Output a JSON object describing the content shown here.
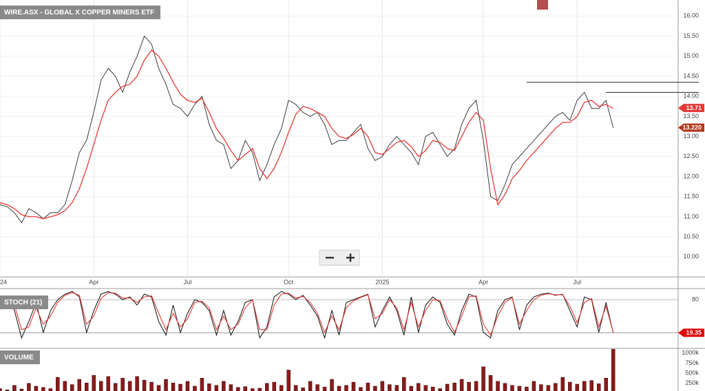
{
  "chart_data": [
    {
      "type": "price",
      "title": "WIRE.ASX - GLOBAL X COPPER MINERS ETF",
      "x": [
        0,
        1,
        2,
        3,
        4,
        5,
        6,
        7,
        8,
        9,
        10,
        11,
        12,
        13,
        14,
        15,
        16,
        17,
        18,
        19,
        20,
        21,
        22,
        23,
        24,
        25,
        26,
        27,
        28,
        29,
        30,
        31,
        32,
        33,
        34,
        35,
        36,
        37,
        38,
        39,
        40,
        41,
        42,
        43,
        44,
        45,
        46,
        47,
        48,
        49,
        50,
        51,
        52,
        53,
        54,
        55,
        56,
        57,
        58,
        59,
        60,
        61,
        62,
        63,
        64,
        65,
        66,
        67,
        68,
        69,
        70,
        71,
        72,
        73,
        74,
        75,
        76,
        77,
        78,
        79,
        80,
        81,
        82,
        83,
        84,
        85
      ],
      "xlim": [
        0,
        94
      ],
      "xticks": [
        {
          "value": 0,
          "label": "24"
        },
        {
          "value": 13,
          "label": "Apr"
        },
        {
          "value": 26,
          "label": "Jul"
        },
        {
          "value": 40,
          "label": "Oct"
        },
        {
          "value": 53,
          "label": "2025"
        },
        {
          "value": 67,
          "label": "Apr"
        },
        {
          "value": 80,
          "label": "Jul"
        }
      ],
      "ylim": [
        9.5,
        16.4
      ],
      "yticks": [
        {
          "value": 10,
          "label": "10.00"
        },
        {
          "value": 10.5,
          "label": "10.50"
        },
        {
          "value": 11,
          "label": "11.00"
        },
        {
          "value": 11.5,
          "label": "11.50"
        },
        {
          "value": 12,
          "label": "12.00"
        },
        {
          "value": 12.5,
          "label": "12.50"
        },
        {
          "value": 13,
          "label": "13.00"
        },
        {
          "value": 13.5,
          "label": "13.50"
        },
        {
          "value": 14,
          "label": "14.00"
        },
        {
          "value": 14.5,
          "label": "14.50"
        },
        {
          "value": 15,
          "label": "15.00"
        },
        {
          "value": 15.5,
          "label": "15.50"
        },
        {
          "value": 16,
          "label": "16.00"
        }
      ],
      "grid": true,
      "series": [
        {
          "color": "#3a3a3a",
          "values": [
            11.3,
            11.25,
            11.1,
            10.85,
            11.2,
            11.1,
            10.95,
            11.1,
            11.1,
            11.3,
            11.9,
            12.6,
            12.9,
            13.6,
            14.4,
            14.7,
            14.5,
            14.1,
            14.6,
            15.0,
            15.5,
            15.3,
            14.7,
            14.3,
            13.8,
            13.7,
            13.5,
            13.8,
            14.0,
            13.3,
            12.9,
            12.8,
            12.2,
            12.4,
            12.9,
            12.6,
            11.9,
            12.3,
            12.8,
            13.2,
            13.9,
            13.8,
            13.6,
            13.5,
            13.6,
            13.3,
            12.8,
            12.9,
            12.9,
            13.1,
            13.3,
            12.7,
            12.4,
            12.5,
            12.8,
            13.0,
            12.8,
            12.6,
            12.3,
            13.0,
            13.1,
            12.8,
            12.5,
            12.7,
            13.3,
            13.7,
            13.9,
            12.9,
            11.5,
            11.4,
            11.8,
            12.3,
            12.5,
            12.7,
            12.9,
            13.1,
            13.3,
            13.5,
            13.6,
            13.4,
            13.9,
            14.1,
            13.7,
            13.7,
            13.9,
            13.22
          ]
        },
        {
          "color": "#e53935",
          "values": [
            11.35,
            11.3,
            11.2,
            11.05,
            11.0,
            11.0,
            10.95,
            11.0,
            11.05,
            11.15,
            11.35,
            11.7,
            12.2,
            12.8,
            13.4,
            13.9,
            14.1,
            14.25,
            14.3,
            14.5,
            14.9,
            15.15,
            15.0,
            14.7,
            14.35,
            14.05,
            13.9,
            13.85,
            13.95,
            13.6,
            13.2,
            12.95,
            12.65,
            12.4,
            12.55,
            12.7,
            12.2,
            11.95,
            12.2,
            12.6,
            13.1,
            13.55,
            13.75,
            13.7,
            13.6,
            13.5,
            13.2,
            13.0,
            12.95,
            13.05,
            13.2,
            13.0,
            12.6,
            12.55,
            12.7,
            12.85,
            12.9,
            12.75,
            12.5,
            12.65,
            12.9,
            12.85,
            12.7,
            12.65,
            13.0,
            13.35,
            13.6,
            13.4,
            12.2,
            11.3,
            11.55,
            11.95,
            12.15,
            12.4,
            12.6,
            12.8,
            13.0,
            13.2,
            13.35,
            13.35,
            13.5,
            13.85,
            13.9,
            13.75,
            13.8,
            13.7
          ]
        }
      ],
      "levels": [
        {
          "y": 14.35,
          "x_from": 73
        },
        {
          "y": 14.1,
          "x_from": 84
        }
      ],
      "tags": [
        {
          "value": 13.71,
          "label": "13.71",
          "color": "#e53935"
        },
        {
          "value": 13.22,
          "label": "13.220",
          "color": "#b23a1e"
        }
      ]
    },
    {
      "type": "stochastic",
      "title": "STOCH (21)",
      "ylim": [
        -8,
        99
      ],
      "yticks": [
        80
      ],
      "series": [
        {
          "color": "#222222",
          "values": [
            70,
            85,
            60,
            10,
            40,
            75,
            20,
            60,
            80,
            90,
            95,
            85,
            20,
            60,
            90,
            95,
            90,
            80,
            85,
            70,
            90,
            85,
            40,
            15,
            70,
            20,
            55,
            80,
            75,
            60,
            15,
            60,
            15,
            40,
            75,
            80,
            10,
            30,
            85,
            95,
            90,
            80,
            88,
            70,
            50,
            10,
            60,
            15,
            75,
            80,
            85,
            90,
            30,
            60,
            85,
            60,
            15,
            85,
            20,
            70,
            85,
            75,
            35,
            15,
            60,
            90,
            85,
            20,
            10,
            60,
            80,
            85,
            25,
            70,
            85,
            90,
            92,
            88,
            90,
            60,
            30,
            85,
            80,
            20,
            75,
            19.35
          ]
        },
        {
          "color": "#e53935",
          "values": [
            72,
            80,
            70,
            25,
            30,
            65,
            35,
            50,
            75,
            88,
            93,
            88,
            35,
            50,
            82,
            93,
            92,
            83,
            83,
            75,
            85,
            87,
            55,
            25,
            55,
            30,
            45,
            75,
            77,
            65,
            25,
            50,
            25,
            35,
            65,
            80,
            25,
            25,
            70,
            90,
            92,
            83,
            86,
            75,
            55,
            20,
            50,
            25,
            65,
            78,
            84,
            89,
            45,
            55,
            80,
            65,
            25,
            75,
            30,
            60,
            80,
            78,
            45,
            20,
            50,
            85,
            87,
            35,
            15,
            50,
            75,
            84,
            35,
            60,
            80,
            88,
            91,
            89,
            89,
            68,
            38,
            75,
            82,
            30,
            68,
            20
          ]
        }
      ],
      "tag": {
        "value": 19.35,
        "label": "19.35",
        "color": "#e00000"
      }
    },
    {
      "type": "volume",
      "title": "VOLUME",
      "color": "#8b1a1a",
      "ylim": [
        60000,
        1100000
      ],
      "yticks": [
        {
          "value": 250000,
          "label": "250k"
        },
        {
          "value": 500000,
          "label": "500k"
        },
        {
          "value": 750000,
          "label": "750k"
        },
        {
          "value": 1000000,
          "label": "1000k"
        }
      ],
      "values": [
        120000,
        90000,
        200000,
        110000,
        250000,
        180000,
        150000,
        120000,
        400000,
        300000,
        220000,
        350000,
        260000,
        450000,
        300000,
        420000,
        250000,
        380000,
        300000,
        420000,
        330000,
        280000,
        200000,
        350000,
        260000,
        230000,
        300000,
        180000,
        380000,
        240000,
        200000,
        300000,
        220000,
        150000,
        170000,
        120000,
        130000,
        250000,
        280000,
        200000,
        580000,
        200000,
        140000,
        300000,
        220000,
        160000,
        350000,
        180000,
        200000,
        280000,
        150000,
        260000,
        180000,
        300000,
        220000,
        200000,
        400000,
        180000,
        250000,
        200000,
        160000,
        120000,
        230000,
        260000,
        350000,
        280000,
        300000,
        660000,
        450000,
        300000,
        250000,
        200000,
        180000,
        160000,
        300000,
        220000,
        200000,
        250000,
        400000,
        280000,
        230000,
        300000,
        320000,
        240000,
        380000,
        1160000
      ]
    }
  ]
}
